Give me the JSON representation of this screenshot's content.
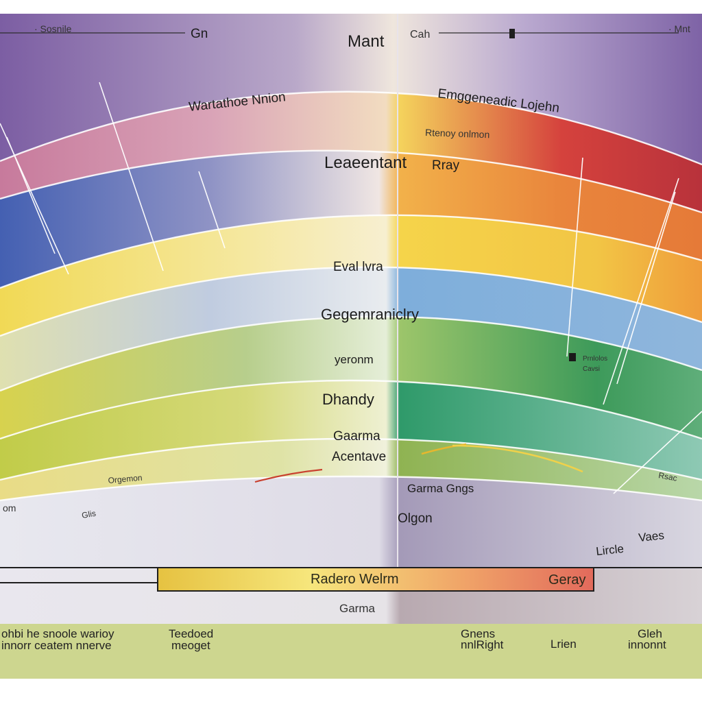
{
  "colors": {
    "violet": "#7e63a6",
    "blue": "#4f6fb7",
    "red": "#cc3a35",
    "orange": "#ea8d3c",
    "yellow": "#f3d24a",
    "lightblue": "#8fb6dc",
    "green": "#3d9a5a",
    "lime": "#b9cc4f",
    "footer": "#cdd68f"
  },
  "top": {
    "left_label": "· Sosnile",
    "gn_label": "Gn",
    "center_title": "Mant",
    "cah_label": "Cah",
    "right_label": "· Mnt"
  },
  "labels": {
    "warm_union": "Wartathoe Nnion",
    "emg": "Emggeneadic Lojehn",
    "recovery": "Rtenoy onlmon",
    "leaeentant": "Leaeentant",
    "ray": "Rray",
    "eval": "Eval lvra",
    "geg": "Gegemraniclry",
    "yeronm": "yeronm",
    "dhandy": "Dhandy",
    "gaarma": "Gaarma",
    "acentave": "Acentave",
    "orgemon": "Orgemon",
    "small_box_1": "Prnlolos",
    "small_box_2": "Cavsi",
    "rsac": "Rsac",
    "gamma_gngs": "Garma Gngs",
    "olgon": "Olgon",
    "glis": "Glis",
    "lom": "om",
    "linde": "Lircle",
    "vaes": "Vaes"
  },
  "scale_bar": {
    "left_label": "Radero Welrm",
    "right_label": "Geray"
  },
  "gamma_bottom": "Garma",
  "footer": {
    "col1_line1": "ohbi   he snoole warioy",
    "col1_line2": "innorr ceatem nnerve",
    "col2_line1": "Teedoed",
    "col2_line2": "meoget",
    "col3_line1": "Gnens",
    "col3_line2": "nnlRight",
    "col4_line1": "Lrien",
    "col5_line1": "Gleh",
    "col5_line2": "innonnt"
  }
}
